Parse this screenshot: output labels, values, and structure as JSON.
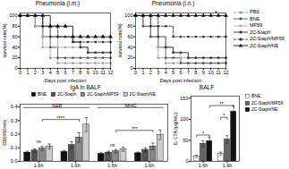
{
  "chart_data": [
    {
      "type": "step",
      "title": "Pneumonia (i.m.)",
      "x_label": "Days post infection",
      "y_label": "survival rate(%)",
      "x": [
        0,
        1,
        2,
        3,
        4,
        5,
        6,
        7,
        8,
        9,
        10,
        11,
        12
      ],
      "xlim": [
        0,
        12
      ],
      "xticks": [
        0,
        1,
        2,
        3,
        4,
        5,
        6,
        7,
        8,
        9,
        10,
        11,
        12
      ],
      "ylim": [
        0,
        105
      ],
      "yticks": [
        0,
        20,
        40,
        60,
        80,
        100
      ],
      "legend": "right",
      "series": [
        {
          "name": "PBS",
          "color": "#999999",
          "line_style": "dashed",
          "marker": "square",
          "values": [
            100,
            100,
            80,
            40,
            20,
            10,
            10,
            10,
            10,
            10,
            10,
            10,
            10
          ]
        },
        {
          "name": "BNE",
          "color": "#555555",
          "line_style": "solid",
          "marker": "square",
          "values": [
            100,
            100,
            80,
            60,
            40,
            20,
            20,
            20,
            20,
            20,
            20,
            20,
            20
          ]
        },
        {
          "name": "MF59",
          "color": "#aaaaaa",
          "line_style": "solid",
          "marker": "square",
          "values": [
            100,
            100,
            80,
            60,
            60,
            40,
            40,
            40,
            40,
            30,
            30,
            30,
            30
          ]
        },
        {
          "name": "2C-Staph",
          "color": "#333333",
          "line_style": "solid",
          "marker": "square",
          "values": [
            100,
            100,
            100,
            80,
            60,
            60,
            60,
            50,
            40,
            30,
            30,
            30,
            30
          ]
        },
        {
          "name": "2C-Staph/MF59",
          "color": "#333333",
          "line_style": "dashed",
          "marker": "square",
          "values": [
            100,
            100,
            100,
            80,
            80,
            60,
            60,
            50,
            50,
            50,
            50,
            50,
            50
          ]
        },
        {
          "name": "2C-Staph/NE",
          "color": "#111111",
          "line_style": "solid",
          "marker": "triangle",
          "values": [
            100,
            100,
            100,
            100,
            80,
            80,
            80,
            60,
            60,
            60,
            60,
            60,
            60
          ]
        }
      ]
    },
    {
      "type": "step",
      "title": "Pneumonia (i.n.)",
      "x_label": "Days post infection",
      "y_label": "survival rate(%)",
      "x": [
        0,
        1,
        2,
        3,
        4,
        5,
        6,
        7,
        8,
        9,
        10,
        11,
        12
      ],
      "xlim": [
        0,
        12
      ],
      "xticks": [
        0,
        1,
        2,
        3,
        4,
        5,
        6,
        7,
        8,
        9,
        10,
        11,
        12
      ],
      "ylim": [
        0,
        105
      ],
      "yticks": [
        0,
        20,
        40,
        60,
        80,
        100
      ],
      "series": [
        {
          "name": "PBS",
          "color": "#999999",
          "line_style": "dashed",
          "marker": "square",
          "values": [
            100,
            80,
            60,
            20,
            10,
            10,
            10,
            10,
            10,
            10,
            10,
            10,
            10
          ]
        },
        {
          "name": "BNE",
          "color": "#555555",
          "line_style": "solid",
          "marker": "square",
          "values": [
            100,
            80,
            60,
            40,
            20,
            20,
            10,
            10,
            10,
            10,
            10,
            10,
            10
          ]
        },
        {
          "name": "MF59",
          "color": "#aaaaaa",
          "line_style": "solid",
          "marker": "square",
          "values": [
            100,
            100,
            80,
            40,
            40,
            30,
            20,
            20,
            20,
            20,
            20,
            20,
            20
          ]
        },
        {
          "name": "2C-Staph",
          "color": "#333333",
          "line_style": "solid",
          "marker": "square",
          "values": [
            100,
            100,
            80,
            60,
            40,
            30,
            30,
            20,
            20,
            20,
            20,
            20,
            20
          ]
        },
        {
          "name": "2C-Staph/MF59",
          "color": "#333333",
          "line_style": "dashed",
          "marker": "square",
          "values": [
            100,
            100,
            100,
            80,
            80,
            60,
            60,
            60,
            60,
            60,
            60,
            60,
            60
          ]
        },
        {
          "name": "2C-Staph/NE",
          "color": "#111111",
          "line_style": "solid",
          "marker": "triangle",
          "values": [
            100,
            100,
            100,
            100,
            100,
            100,
            100,
            100,
            100,
            100,
            100,
            100,
            100
          ]
        }
      ],
      "annotations": [
        {
          "text": "*",
          "x": 10.5,
          "y": 100
        }
      ]
    },
    {
      "type": "bar",
      "title": "IgA in BALF",
      "y_label": "OD(450nm)",
      "categories": [
        "1.6h",
        "1.6h",
        "1.6h",
        "1.6h"
      ],
      "ylim": [
        0,
        0.42
      ],
      "yticks": [
        {
          "value": 0,
          "label": "0.0"
        },
        0.1,
        0.2,
        0.3,
        0.4
      ],
      "legend": "top",
      "series": [
        {
          "name": "BNE",
          "color": "#111111",
          "values": [
            0.065,
            0.07,
            0.055,
            0.06
          ],
          "errors": [
            0.01,
            0.01,
            0.008,
            0.008
          ]
        },
        {
          "name": "2C-Staph",
          "color": "#555555",
          "values": [
            0.08,
            0.12,
            0.065,
            0.085
          ],
          "errors": [
            0.012,
            0.025,
            0.01,
            0.015
          ]
        },
        {
          "name": "2C-Staph/MF59",
          "color": "#888888",
          "values": [
            0.095,
            0.175,
            0.075,
            0.11
          ],
          "errors": [
            0.015,
            0.035,
            0.012,
            0.025
          ]
        },
        {
          "name": "2C-Staph/NE",
          "color": "#cccccc",
          "values": [
            0.11,
            0.27,
            0.09,
            0.195
          ],
          "errors": [
            0.018,
            0.05,
            0.015,
            0.035
          ]
        }
      ],
      "spans": [
        {
          "text": "SEB",
          "from": 0,
          "to": 1,
          "y": 0.395
        },
        {
          "text": "MntC",
          "from": 2,
          "to": 3,
          "y": 0.395
        }
      ],
      "brackets": [
        {
          "text": "****",
          "from": [
            0,
            "2C-Staph/MF59"
          ],
          "to": [
            1,
            "2C-Staph/MF59"
          ],
          "y": 0.295
        },
        {
          "text": "***",
          "from": [
            2,
            "2C-Staph/MF59"
          ],
          "to": [
            3,
            "2C-Staph/MF59"
          ],
          "y": 0.215
        }
      ],
      "annotations": [
        {
          "text": "ns",
          "at": 0
        },
        {
          "text": "ns",
          "at": 2
        }
      ]
    },
    {
      "type": "bar",
      "title": "BALF",
      "y_label": "IL-17A (pg/mL)",
      "categories": [
        "1.6h",
        "1.6h"
      ],
      "ylim": [
        0,
        155
      ],
      "yticks": [
        0,
        50,
        100,
        150
      ],
      "legend": "right",
      "series": [
        {
          "name": "BNE",
          "color": "#ffffff",
          "values": [
            12,
            18
          ],
          "errors": [
            3,
            4
          ]
        },
        {
          "name": "2C-Staph/MF59",
          "color": "#666666",
          "values": [
            42,
            52
          ],
          "errors": [
            7,
            9
          ]
        },
        {
          "name": "2C-Staph/NE",
          "color": "#111111",
          "values": [
            48,
            118
          ],
          "errors": [
            9,
            14
          ]
        }
      ],
      "brackets": [
        {
          "text": "*",
          "from": [
            0,
            "BNE"
          ],
          "to": [
            0,
            "2C-Staph/NE"
          ],
          "y": 58
        },
        {
          "text": "**",
          "from": [
            0,
            "2C-Staph/NE"
          ],
          "to": [
            1,
            "2C-Staph/NE"
          ],
          "y": 128
        },
        {
          "text": "*",
          "from": [
            1,
            "BNE"
          ],
          "to": [
            1,
            "2C-Staph/MF59"
          ],
          "y": 100
        }
      ]
    }
  ]
}
